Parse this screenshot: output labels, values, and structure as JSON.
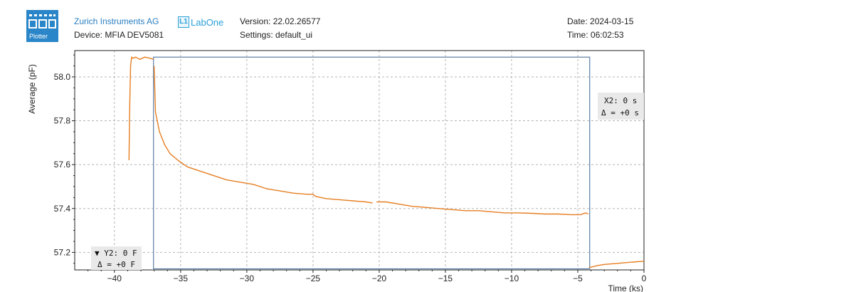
{
  "header": {
    "plotter_label": "Plotter",
    "company": "Zurich Instruments AG",
    "device": "Device: MFIA DEV5081",
    "brand_badge": "L1",
    "brand_name": "LabOne",
    "version": "Version: 22.02.26577",
    "settings": "Settings: default_ui",
    "date": "Date: 2024-03-15",
    "time": "Time: 06:02:53"
  },
  "colors": {
    "trace": "#e67e22",
    "cursor": "#5b7fa6",
    "accent": "#2a7fc1"
  },
  "chart_data": {
    "type": "line",
    "ylabel": "Average (pF)",
    "xlabel": "Time (ks)",
    "xlim": [
      -43.0,
      0.0
    ],
    "ylim": [
      57.12,
      58.12
    ],
    "xticks": [
      -40,
      -35,
      -30,
      -25,
      -20,
      -15,
      -10,
      -5,
      0
    ],
    "yticks": [
      57.2,
      57.4,
      57.6,
      57.8,
      58.0
    ],
    "xtick_labels": [
      "−40",
      "−35",
      "−30",
      "−25",
      "−20",
      "−15",
      "−10",
      "−5",
      "0"
    ],
    "ytick_labels": [
      "57.2",
      "57.4",
      "57.6",
      "57.8",
      "58.0"
    ],
    "grid": true,
    "series": [
      {
        "segments": [
          {
            "x": [
              -38.9,
              -38.85,
              -38.78,
              -38.7,
              -38.6,
              -38.4,
              -38.1,
              -37.7,
              -37.3,
              -37.05
            ],
            "y": [
              57.62,
              57.85,
              58.05,
              58.09,
              58.085,
              58.09,
              58.08,
              58.09,
              58.085,
              58.08
            ]
          },
          {
            "x": [
              -37.0,
              -36.9,
              -36.6,
              -36.2,
              -35.8,
              -35.2,
              -34.5,
              -33.5,
              -32.5,
              -31.5,
              -30.5,
              -29.5,
              -28.5,
              -27.5,
              -26.5,
              -25.5,
              -25.0,
              -24.8,
              -24.0,
              -23.0,
              -22.0,
              -21.0,
              -20.5
            ],
            "y": [
              58.05,
              57.84,
              57.75,
              57.69,
              57.65,
              57.62,
              57.59,
              57.57,
              57.55,
              57.53,
              57.52,
              57.51,
              57.49,
              57.48,
              57.47,
              57.465,
              57.465,
              57.455,
              57.445,
              57.44,
              57.435,
              57.43,
              57.425
            ]
          },
          {
            "x": [
              -20.2,
              -19.5,
              -18.5,
              -17.5,
              -16.5,
              -15.5,
              -14.5,
              -13.5,
              -12.5,
              -11.5,
              -10.5,
              -9.5,
              -8.5,
              -7.5,
              -6.5,
              -5.5,
              -4.8,
              -4.4,
              -4.2
            ],
            "y": [
              57.43,
              57.43,
              57.42,
              57.41,
              57.405,
              57.4,
              57.395,
              57.39,
              57.39,
              57.385,
              57.38,
              57.38,
              57.378,
              57.375,
              57.375,
              57.372,
              57.372,
              57.38,
              57.375
            ]
          },
          {
            "x": [
              -4.15,
              -4.05,
              -3.5,
              -3.0,
              -2.0,
              -1.0,
              0.0
            ],
            "y": [
              57.13,
              57.132,
              57.14,
              57.145,
              57.15,
              57.155,
              57.16
            ]
          }
        ]
      }
    ],
    "cursors": {
      "x1": -37.05,
      "x2": -4.1,
      "y1": 58.09,
      "y2": 57.125,
      "x_label": "X2: 0 s",
      "x_delta": "Δ = +0 s",
      "y_label": "▼ Y2: 0 F",
      "y_delta": "Δ = +0 F"
    }
  }
}
